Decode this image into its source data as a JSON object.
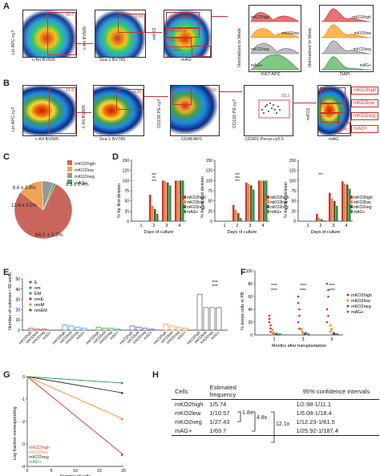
{
  "panels": {
    "A": "A",
    "B": "B",
    "C": "C",
    "D": "D",
    "E": "E",
    "F": "F",
    "G": "G",
    "H": "H"
  },
  "panelA": {
    "p1": {
      "x": "c-Kit BV605",
      "y": "Lin APC-cy7",
      "gate": "43.7"
    },
    "p2": {
      "x": "Sca-1 BV785",
      "y": "c-Kit BV605",
      "gate": "3.63"
    },
    "p3": {
      "x": "mAG",
      "y": "mKO2",
      "g1": "mKO2high",
      "g2": "mKO2low",
      "g3": "mKO2neg",
      "g4": "mAG+"
    },
    "h1": {
      "x": "Ki67 APC",
      "y": "Normalized to Mode",
      "rows": [
        "mKO2high",
        "mKO2low",
        "mKO2neg",
        "mAG+"
      ]
    },
    "h2": {
      "x": "DAPI",
      "y": "Normalized to Mode",
      "rows": [
        "mKO2high",
        "mKO2low",
        "mKO2neg",
        "mAG+"
      ]
    }
  },
  "panelB": {
    "p1": {
      "x": "c-Kit BV605",
      "y": "Lin APC-cy7",
      "gate": "51.2"
    },
    "p2": {
      "x": "Sca-1 BV785",
      "y": "c-Kit BV605",
      "gate": "4.36"
    },
    "p3": {
      "x": "CD48 APC",
      "y": "CD150 PE-cy7",
      "gate": "9.93"
    },
    "p4": {
      "x": "CD201 Percp-cy5.5",
      "y": "CD150 PE-cy7",
      "gate": "93.2"
    },
    "p5": {
      "x": "mAG",
      "y": "mKO2",
      "vals": [
        "63.6",
        "17.3",
        "12.7",
        "0.78"
      ],
      "labels": [
        "mKO2high",
        "mKO2low",
        "mKO2neg",
        "mAG+"
      ]
    }
  },
  "panelC": {
    "legend": [
      "mKO2high",
      "mKO2low",
      "mKO2neg",
      "mAG+"
    ],
    "labels": [
      "64.0 ± 3.5%",
      "13.6 ± 3.0%",
      "6.6 ± 3.9%",
      "1.3 ± 0.4%"
    ],
    "colors": [
      "#c9665b",
      "#f0a354",
      "#999999",
      "#4caf50"
    ]
  },
  "panelD": {
    "ylabels": [
      "% for first division",
      "% for second division",
      "% for third division"
    ],
    "xlabel": "Days of culture",
    "legend": [
      "mKO2high",
      "mKO2low",
      "mKO2neg",
      "mAG+"
    ],
    "colors": [
      "#d32f2f",
      "#f08a24",
      "#555555",
      "#2e9b3e"
    ],
    "ticks_y": [
      "0",
      "25",
      "50",
      "75",
      "100",
      "125",
      "150"
    ],
    "days": [
      "1",
      "2",
      "3",
      "4"
    ],
    "sig1": [
      "***",
      "**",
      "***"
    ],
    "sig2": [
      "***",
      "***",
      "***"
    ],
    "sig3": [
      "***"
    ]
  },
  "panelE": {
    "ylabel": "Number of colonies / 60 wells",
    "legend": [
      "E",
      "nm",
      "EM",
      "nmE",
      "nmM",
      "nmEM"
    ],
    "legend_colors": [
      "#d32f2f",
      "#1e88e5",
      "#2e9b3e",
      "#5e35b1",
      "#f08a24",
      "#555555"
    ],
    "yticks": [
      "0",
      "10",
      "20",
      "30",
      "40",
      "50"
    ],
    "groups": [
      "mKO2high",
      "mKO2low",
      "mKO2neg",
      "mAG+"
    ],
    "sig": [
      "****",
      "****"
    ]
  },
  "panelF": {
    "ylabel": "% donor cells in PB",
    "xlabel": "Months after transplantation",
    "months": [
      "1",
      "3",
      "6"
    ],
    "yticks": [
      "0",
      "20",
      "40",
      "60",
      "80",
      "100"
    ],
    "legend": [
      "mKO2high",
      "mKO2low",
      "mKO2neg",
      "mAG+"
    ],
    "colors": [
      "#d32f2f",
      "#f08a24",
      "#555555",
      "#2e9b3e"
    ],
    "sig": [
      "****",
      "****",
      "****",
      "****",
      "****",
      "****"
    ]
  },
  "panelG": {
    "ylabel": "Log fraction nonresponding",
    "xlabel": "Number of cells",
    "xticks": [
      "0",
      "5",
      "10",
      "15",
      "20"
    ],
    "yticks": [
      "0",
      "-1",
      "-2",
      "-3",
      "-4"
    ],
    "legend": [
      "mKO2high",
      "mKO2low",
      "mKO2neg",
      "mAG+"
    ],
    "colors": [
      "#d32f2f",
      "#f08a24",
      "#333333",
      "#2e9b3e"
    ]
  },
  "panelH": {
    "headers": [
      "Cells",
      "Estimated frequency",
      "95% confidence intervals"
    ],
    "rows": [
      {
        "cell": "mKO2high",
        "freq": "1/5.74",
        "ci": "1/2.98-1/11.1"
      },
      {
        "cell": "mKO2low",
        "freq": "1/10.57",
        "ci": "1/6.08-1/18.4"
      },
      {
        "cell": "mKO2neg",
        "freq": "1/27.43",
        "ci": "1/12.23-1/61.5"
      },
      {
        "cell": "mAG+",
        "freq": "1/69.7",
        "ci": "1/25.92-1/187.4"
      }
    ],
    "folds": [
      "1.8x",
      "4.8x",
      "12.1x"
    ]
  }
}
